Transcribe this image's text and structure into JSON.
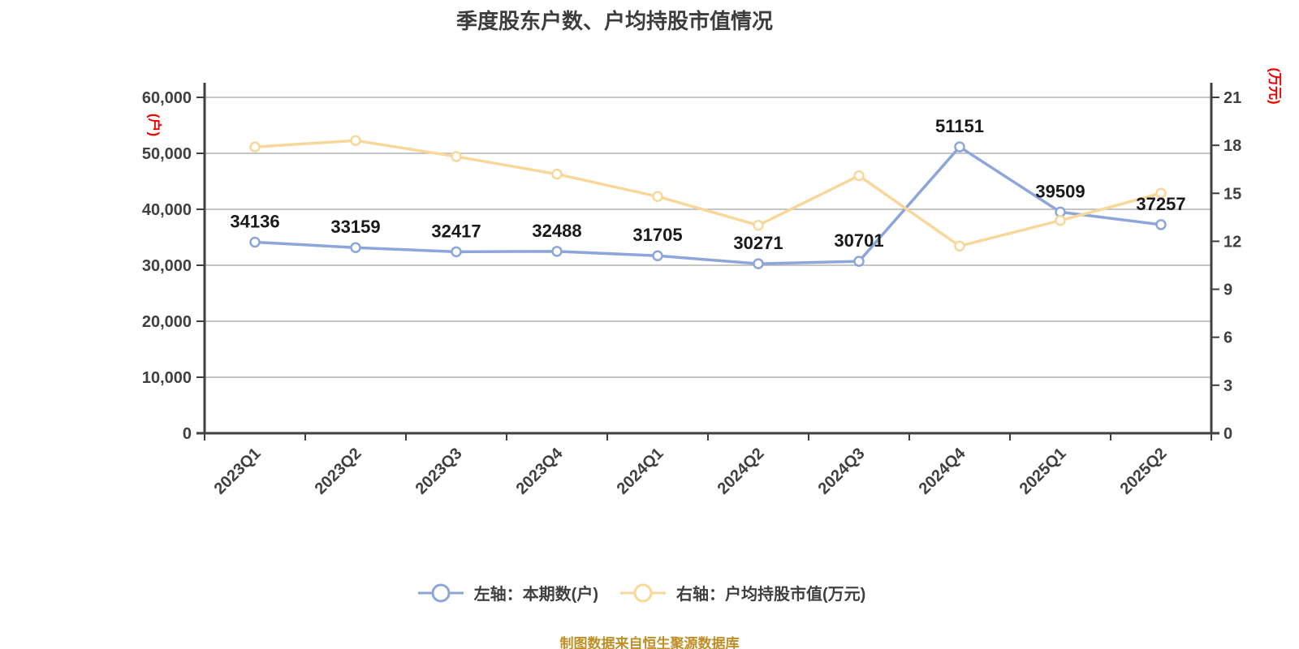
{
  "title": "季度股东户数、户均持股市值情况",
  "footer": "制图数据来自恒生聚源数据库",
  "legend": {
    "items": [
      {
        "label": "左轴：本期数(户)",
        "color": "#8ca6d9"
      },
      {
        "label": "右轴：户均持股市值(万元)",
        "color": "#f8d79b"
      }
    ]
  },
  "colors": {
    "axis": "#404040",
    "grid": "#b3b3b3",
    "tick_text": "#404040",
    "data_label": "#1a1a1a",
    "title": "#3d3d3d",
    "footer": "#bf8e24",
    "unit": "#f00000",
    "background": "#ffffff",
    "marker_fill": "#ffffff"
  },
  "chart_data": {
    "type": "line",
    "title": "季度股东户数、户均持股市值情况",
    "categories": [
      "2023Q1",
      "2023Q2",
      "2023Q3",
      "2023Q4",
      "2024Q1",
      "2024Q2",
      "2024Q3",
      "2024Q4",
      "2025Q1",
      "2025Q2"
    ],
    "series": [
      {
        "name": "左轴：本期数(户)",
        "axis": "left",
        "color": "#8ca6d9",
        "data_labels": true,
        "values": [
          34136,
          33159,
          32417,
          32488,
          31705,
          30271,
          30701,
          51151,
          39509,
          37257
        ]
      },
      {
        "name": "右轴：户均持股市值(万元)",
        "axis": "right",
        "color": "#f8d79b",
        "data_labels": false,
        "values": [
          17.9,
          18.3,
          17.3,
          16.2,
          14.8,
          13.0,
          16.1,
          11.7,
          13.3,
          15.0
        ]
      }
    ],
    "left_axis": {
      "unit": "(户)",
      "min": 0,
      "max": 60000,
      "interval": 10000,
      "tick_labels": [
        "0",
        "10,000",
        "20,000",
        "30,000",
        "40,000",
        "50,000",
        "60,000"
      ]
    },
    "right_axis": {
      "unit": "(万元)",
      "min": 0,
      "max": 21,
      "interval": 3,
      "tick_labels": [
        "0",
        "3",
        "6",
        "9",
        "12",
        "15",
        "18",
        "21"
      ]
    },
    "grid": true,
    "x_label_rotation": -45,
    "legend_position": "bottom"
  }
}
